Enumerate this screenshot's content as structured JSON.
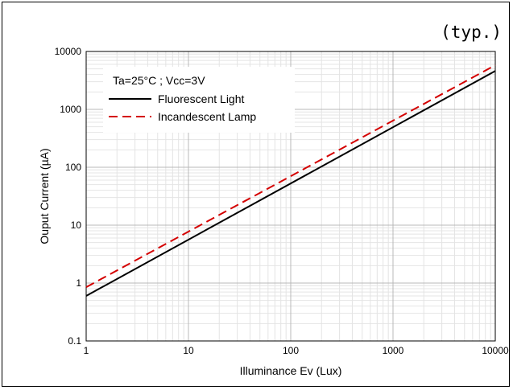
{
  "typ_label": "(typ.)",
  "chart_data": {
    "type": "line",
    "xscale": "log",
    "yscale": "log",
    "xlim": [
      1,
      10000
    ],
    "ylim": [
      0.1,
      10000
    ],
    "xlabel": "Illuminance Ev (Lux)",
    "ylabel": "Ouput Current (µA)",
    "x_ticks": [
      "1",
      "10",
      "100",
      "1000",
      "10000"
    ],
    "y_ticks": [
      "0.1",
      "1",
      "10",
      "100",
      "1000",
      "10000"
    ],
    "grid": true,
    "legend_position": "top-left",
    "legend_title": "Ta=25°C ; Vcc=3V",
    "series": [
      {
        "name": "Fluorescent Light",
        "color": "#000000",
        "style": "solid",
        "x": [
          1,
          10000
        ],
        "y": [
          0.6,
          4600
        ]
      },
      {
        "name": "Incandescent Lamp",
        "color": "#d40000",
        "style": "dashed",
        "x": [
          1,
          10000
        ],
        "y": [
          0.85,
          5800
        ]
      }
    ]
  }
}
